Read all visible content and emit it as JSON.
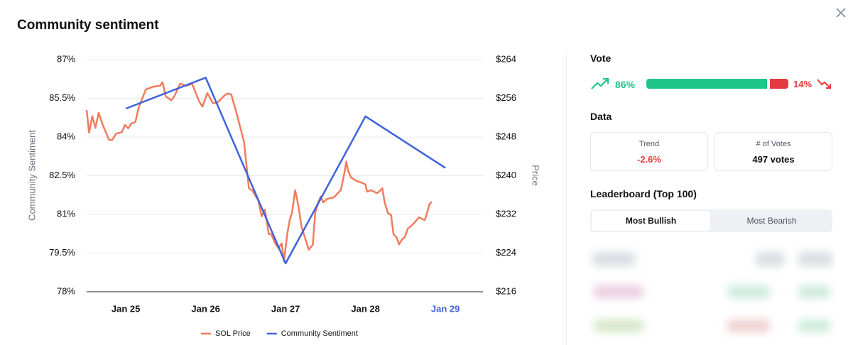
{
  "header": {
    "title": "Community sentiment"
  },
  "chart_data": {
    "type": "line",
    "y_label": "Community Sentiment",
    "y2_label": "Price",
    "xlim": [
      24.51,
      29.47
    ],
    "xticks": [
      {
        "value": 25,
        "label": "Jan 25"
      },
      {
        "value": 26,
        "label": "Jan 26"
      },
      {
        "value": 27,
        "label": "Jan 27"
      },
      {
        "value": 28,
        "label": "Jan 28"
      },
      {
        "value": 29,
        "label": "Jan 29"
      }
    ],
    "ylim": [
      78,
      87
    ],
    "yticks": [
      {
        "value": 78,
        "label": "78%"
      },
      {
        "value": 79.5,
        "label": "79.5%"
      },
      {
        "value": 81,
        "label": "81%"
      },
      {
        "value": 82.5,
        "label": "82.5%"
      },
      {
        "value": 84,
        "label": "84%"
      },
      {
        "value": 85.5,
        "label": "85.5%"
      },
      {
        "value": 87,
        "label": "87%"
      }
    ],
    "y2lim": [
      216,
      264
    ],
    "y2ticks": [
      {
        "value": 216,
        "label": "$216"
      },
      {
        "value": 224,
        "label": "$224"
      },
      {
        "value": 232,
        "label": "$232"
      },
      {
        "value": 240,
        "label": "$240"
      },
      {
        "value": 248,
        "label": "$248"
      },
      {
        "value": 256,
        "label": "$256"
      },
      {
        "value": 264,
        "label": "$264"
      }
    ],
    "grid": true,
    "legend": "bottom",
    "series": [
      {
        "name": "SOL Price",
        "color": "#f07c5f",
        "axis": "y2",
        "x": [
          24.51,
          24.54,
          24.58,
          24.62,
          24.66,
          24.71,
          24.79,
          24.83,
          24.88,
          24.95,
          24.99,
          25.03,
          25.07,
          25.12,
          25.16,
          25.25,
          25.34,
          25.43,
          25.46,
          25.5,
          25.57,
          25.61,
          25.68,
          25.76,
          25.83,
          25.92,
          25.96,
          26.02,
          26.09,
          26.14,
          26.23,
          26.27,
          26.32,
          26.4,
          26.45,
          26.48,
          26.54,
          26.58,
          26.66,
          26.7,
          26.74,
          26.79,
          26.82,
          26.87,
          26.91,
          26.95,
          26.98,
          27.02,
          27.05,
          27.08,
          27.12,
          27.16,
          27.2,
          27.29,
          27.34,
          27.37,
          27.41,
          27.44,
          27.47,
          27.52,
          27.6,
          27.69,
          27.73,
          27.76,
          27.78,
          27.82,
          27.89,
          27.96,
          28.0,
          28.02,
          28.07,
          28.14,
          28.17,
          28.21,
          28.24,
          28.28,
          28.32,
          28.35,
          28.39,
          28.42,
          28.46,
          28.49,
          28.53,
          28.58,
          28.67,
          28.74,
          28.77,
          28.8,
          28.83
        ],
        "values": [
          253.6,
          248.9,
          252.3,
          249.9,
          253.0,
          250.6,
          247.4,
          247.4,
          248.7,
          249.0,
          250.5,
          249.8,
          250.8,
          251.1,
          254.0,
          257.8,
          258.4,
          258.6,
          259.3,
          256.4,
          255.6,
          256.5,
          259.0,
          258.6,
          259.0,
          255.3,
          254.3,
          257.1,
          255.0,
          255.0,
          256.5,
          257.0,
          256.8,
          252.1,
          248.9,
          247.0,
          237.4,
          237.0,
          234.8,
          231.6,
          233.0,
          227.9,
          227.9,
          226.0,
          225.0,
          226.0,
          222.3,
          227.9,
          230.8,
          232.3,
          237.0,
          233.8,
          229.4,
          224.7,
          225.7,
          232.3,
          234.6,
          235.7,
          234.5,
          235.2,
          235.5,
          237.0,
          240.1,
          242.9,
          241.1,
          239.6,
          238.9,
          238.5,
          238.2,
          236.7,
          237.0,
          236.4,
          236.7,
          237.4,
          234.5,
          232.3,
          231.9,
          227.9,
          227.2,
          225.8,
          226.9,
          227.2,
          229.1,
          229.7,
          231.4,
          230.8,
          232.3,
          234.1,
          234.6
        ]
      },
      {
        "name": "Community Sentiment",
        "color": "#3e63dd",
        "x": [
          25,
          26,
          27,
          28,
          29
        ],
        "values": [
          85.1,
          86.3,
          79.1,
          84.8,
          82.8
        ]
      }
    ]
  },
  "vote": {
    "title": "Vote",
    "values": [
      86,
      14
    ],
    "value_labels": [
      "86%",
      "14%"
    ],
    "colors": [
      "#1ec68a",
      "#e5393f"
    ]
  },
  "data_section": {
    "title": "Data",
    "cards": [
      {
        "label": "Trend",
        "value": "-2.6%"
      },
      {
        "label": "# of Votes",
        "value": "497 votes"
      }
    ]
  },
  "leaderboard": {
    "title": "Leaderboard (Top 100)",
    "tabs": [
      "Most Bullish",
      "Most Bearish"
    ]
  }
}
